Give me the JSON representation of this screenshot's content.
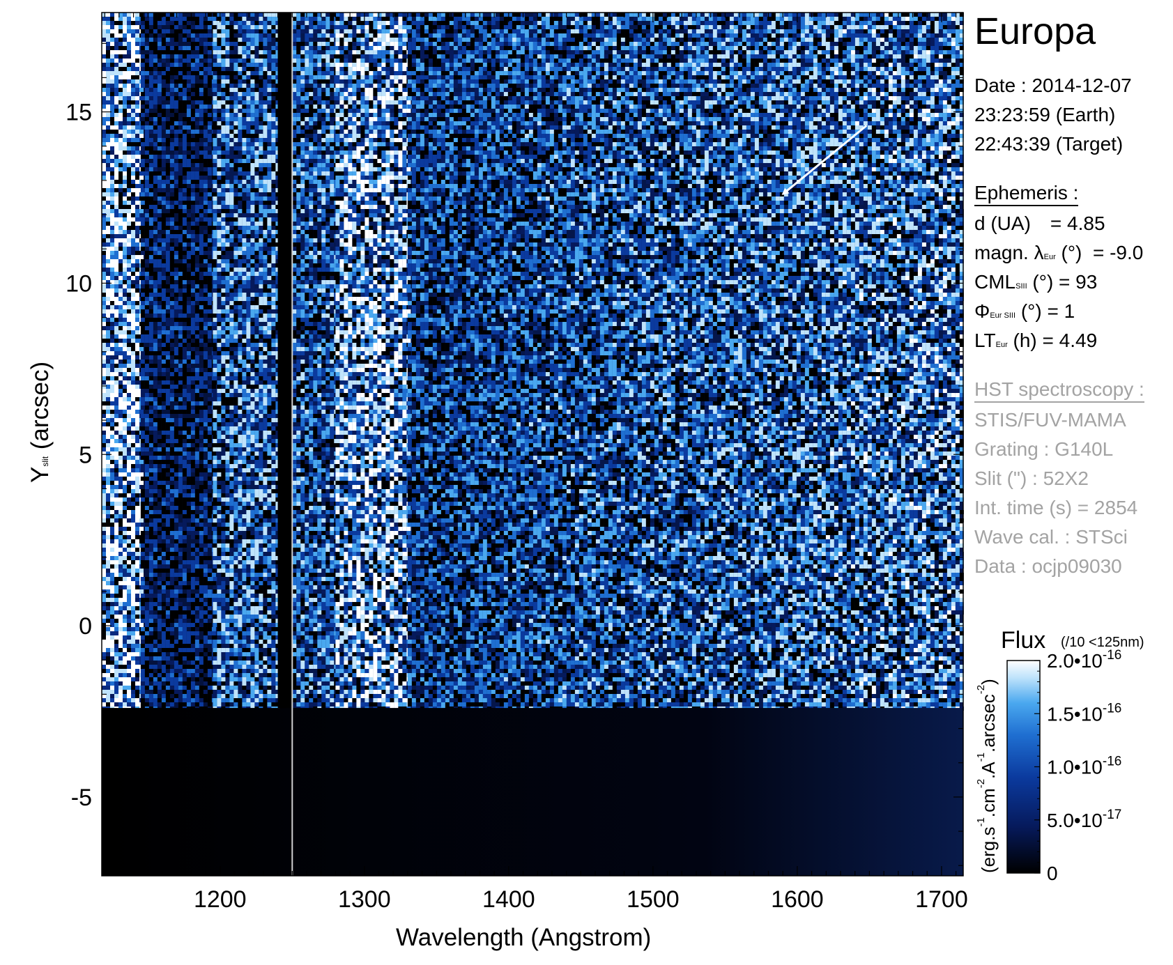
{
  "title": "Europa",
  "observation": {
    "date_line": "Date : 2014-12-07",
    "earth_time": "23:23:59 (Earth)",
    "target_time": "22:43:39 (Target)"
  },
  "ephemeris": {
    "heading": "Ephemeris :",
    "d": {
      "label": "d (UA)",
      "value": "= 4.85"
    },
    "magn_lat": {
      "label": "magn. λ",
      "sub": "Eur",
      "unit": "(°)",
      "value": "= -9.0"
    },
    "cml": {
      "label": "CML",
      "sub": "SIII",
      "unit": "(°) = 93"
    },
    "phi": {
      "label": "Φ",
      "sub": "Eur SIII",
      "unit": "(°) = 1"
    },
    "lt": {
      "label": "LT",
      "sub": "Eur",
      "unit": "(h) = 4.49"
    }
  },
  "hst": {
    "heading": "HST spectroscopy :",
    "instrument": "STIS/FUV-MAMA",
    "grating": "Grating : G140L",
    "slit": "Slit (\") : 52X2",
    "int_time": "Int. time (s) = 2854",
    "wave_cal": "Wave cal. : STSci",
    "data": "Data : ocjp09030"
  },
  "colorbar": {
    "title": "Flux",
    "note": "(/10 <125nm)",
    "ylabel_parts": [
      "(erg.s",
      "-1",
      ".cm",
      "-2",
      ".A",
      "-1",
      ".arcsec",
      "-2",
      ")"
    ],
    "ticks": [
      {
        "value": 2e-16,
        "mant": "2.0•10",
        "exp": "-16"
      },
      {
        "value": 1.5e-16,
        "mant": "1.5•10",
        "exp": "-16"
      },
      {
        "value": 1e-16,
        "mant": "1.0•10",
        "exp": "-16"
      },
      {
        "value": 5e-17,
        "mant": "5.0•10",
        "exp": "-17"
      },
      {
        "value": 0,
        "mant": "0",
        "exp": ""
      }
    ],
    "colors": [
      "#000000",
      "#061a5c",
      "#0b3a9e",
      "#1f6fd1",
      "#4aa8ef",
      "#bfe3fb",
      "#ffffff"
    ]
  },
  "chart_data": {
    "type": "heatmap",
    "xlabel": "Wavelength (Angstrom)",
    "ylabel": "Y",
    "ylabel_sub": "slit",
    "ylabel_unit": "(arcsec)",
    "xlim": [
      1118,
      1715
    ],
    "ylim": [
      -7.3,
      17.9
    ],
    "xticks": [
      1200,
      1300,
      1400,
      1500,
      1600,
      1700
    ],
    "xtick_labels": [
      "1200",
      "1300",
      "1400",
      "1500",
      "1600",
      "1700"
    ],
    "yticks": [
      -5,
      0,
      5,
      10,
      15
    ],
    "ytick_labels": [
      "-5",
      "0",
      "5",
      "10",
      "15"
    ],
    "data_bottom_y": -2.4,
    "gap_columns": [
      [
        1240,
        1246
      ]
    ],
    "separator_x": 1250,
    "emission_bands": [
      {
        "x": [
          1118,
          1145
        ],
        "level": 1.0
      },
      {
        "x": [
          1145,
          1195
        ],
        "level": 0.1
      },
      {
        "x": [
          1195,
          1240
        ],
        "level": 0.55
      },
      {
        "x": [
          1250,
          1280
        ],
        "level": 0.45
      },
      {
        "x": [
          1280,
          1330
        ],
        "level": 0.85
      },
      {
        "x": [
          1330,
          1715
        ],
        "level": 0.4
      }
    ],
    "arrow": {
      "from": [
        1648,
        14.6
      ],
      "to": [
        1590,
        12.6
      ]
    }
  }
}
